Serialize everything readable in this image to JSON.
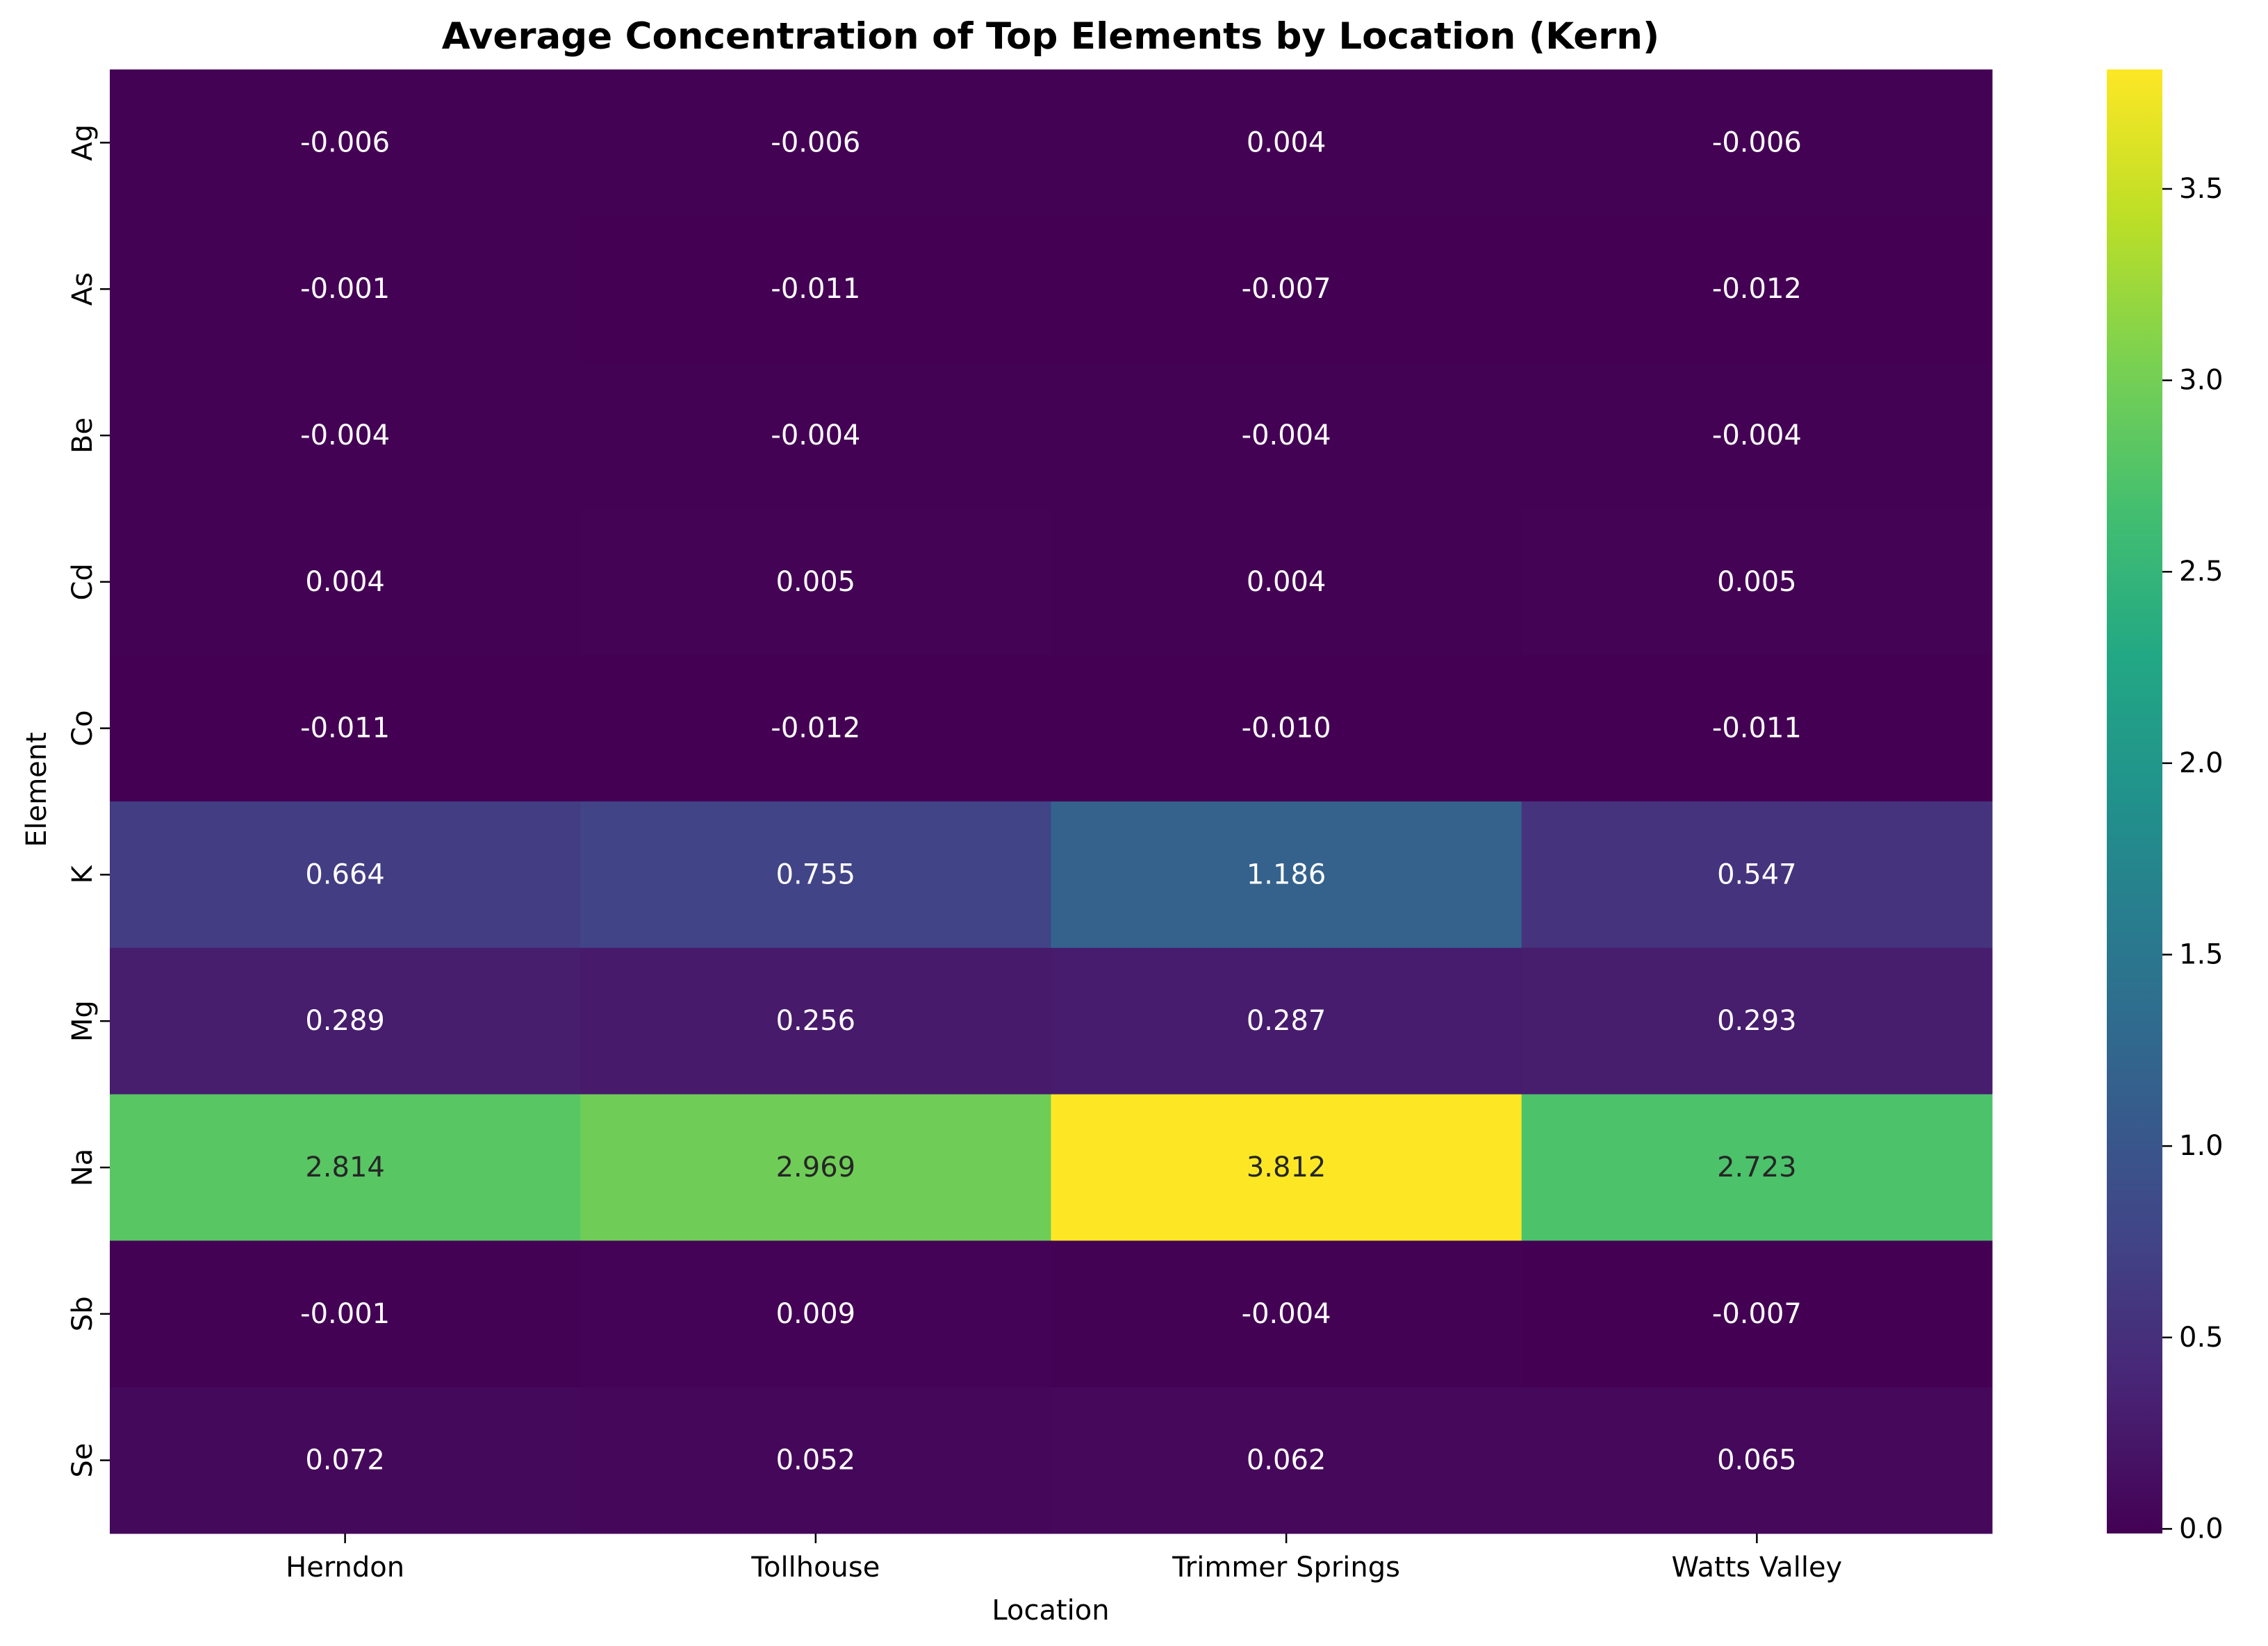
{
  "chart_data": {
    "type": "heatmap",
    "title": "Average Concentration of Top Elements by Location (Kern)",
    "xlabel": "Location",
    "ylabel": "Element",
    "columns": [
      "Herndon",
      "Tollhouse",
      "Trimmer Springs",
      "Watts Valley"
    ],
    "rows": [
      "Ag",
      "As",
      "Be",
      "Cd",
      "Co",
      "K",
      "Mg",
      "Na",
      "Sb",
      "Se"
    ],
    "values": [
      [
        -0.006,
        -0.006,
        0.004,
        -0.006
      ],
      [
        -0.001,
        -0.011,
        -0.007,
        -0.012
      ],
      [
        -0.004,
        -0.004,
        -0.004,
        -0.004
      ],
      [
        0.004,
        0.005,
        0.004,
        0.005
      ],
      [
        -0.011,
        -0.012,
        -0.01,
        -0.011
      ],
      [
        0.664,
        0.755,
        1.186,
        0.547
      ],
      [
        0.289,
        0.256,
        0.287,
        0.293
      ],
      [
        2.814,
        2.969,
        3.812,
        2.723
      ],
      [
        -0.001,
        0.009,
        -0.004,
        -0.007
      ],
      [
        0.072,
        0.052,
        0.062,
        0.065
      ]
    ],
    "labels": [
      [
        "-0.006",
        "-0.006",
        "0.004",
        "-0.006"
      ],
      [
        "-0.001",
        "-0.011",
        "-0.007",
        "-0.012"
      ],
      [
        "-0.004",
        "-0.004",
        "-0.004",
        "-0.004"
      ],
      [
        "0.004",
        "0.005",
        "0.004",
        "0.005"
      ],
      [
        "-0.011",
        "-0.012",
        "-0.010",
        "-0.011"
      ],
      [
        "0.664",
        "0.755",
        "1.186",
        "0.547"
      ],
      [
        "0.289",
        "0.256",
        "0.287",
        "0.293"
      ],
      [
        "2.814",
        "2.969",
        "3.812",
        "2.723"
      ],
      [
        "-0.001",
        "0.009",
        "-0.004",
        "-0.007"
      ],
      [
        "0.072",
        "0.052",
        "0.062",
        "0.065"
      ]
    ],
    "colormap": "viridis",
    "vmin": -0.012,
    "vmax": 3.812,
    "colorbar_ticks": [
      0.0,
      0.5,
      1.0,
      1.5,
      2.0,
      2.5,
      3.0,
      3.5
    ],
    "colorbar_tick_labels": [
      "0.0",
      "0.5",
      "1.0",
      "1.5",
      "2.0",
      "2.5",
      "3.0",
      "3.5"
    ],
    "legend_position": "right"
  }
}
